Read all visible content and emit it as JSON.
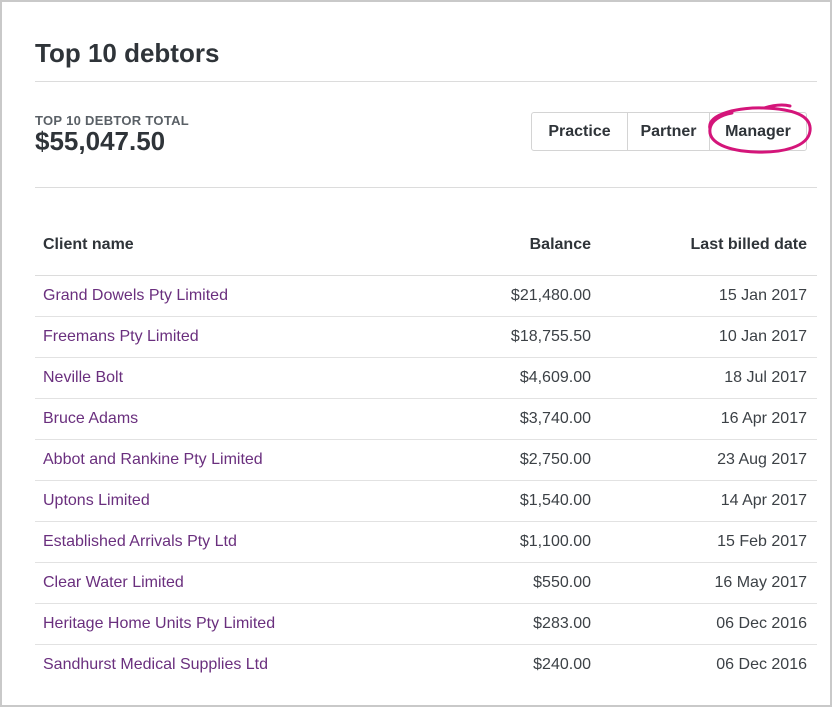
{
  "header": {
    "title": "Top 10 debtors"
  },
  "summary": {
    "label": "TOP 10 DEBTOR TOTAL",
    "value": "$55,047.50"
  },
  "filters": {
    "options": [
      "Practice",
      "Partner",
      "Manager"
    ],
    "selected": "Manager"
  },
  "colors": {
    "link": "#6a2f7e",
    "highlight_ring": "#d4157a"
  },
  "table": {
    "columns": [
      "Client name",
      "Balance",
      "Last billed date"
    ],
    "rows": [
      {
        "client": "Grand Dowels Pty Limited",
        "balance": "$21,480.00",
        "date": "15 Jan 2017"
      },
      {
        "client": "Freemans Pty Limited",
        "balance": "$18,755.50",
        "date": "10 Jan 2017"
      },
      {
        "client": "Neville Bolt",
        "balance": "$4,609.00",
        "date": "18 Jul 2017"
      },
      {
        "client": "Bruce Adams",
        "balance": "$3,740.00",
        "date": "16 Apr 2017"
      },
      {
        "client": "Abbot and Rankine Pty Limited",
        "balance": "$2,750.00",
        "date": "23 Aug 2017"
      },
      {
        "client": "Uptons Limited",
        "balance": "$1,540.00",
        "date": "14 Apr 2017"
      },
      {
        "client": "Established Arrivals Pty Ltd",
        "balance": "$1,100.00",
        "date": "15 Feb 2017"
      },
      {
        "client": "Clear Water Limited",
        "balance": "$550.00",
        "date": "16 May 2017"
      },
      {
        "client": "Heritage Home Units Pty Limited",
        "balance": "$283.00",
        "date": "06 Dec 2016"
      },
      {
        "client": "Sandhurst Medical Supplies Ltd",
        "balance": "$240.00",
        "date": "06 Dec 2016"
      }
    ]
  }
}
